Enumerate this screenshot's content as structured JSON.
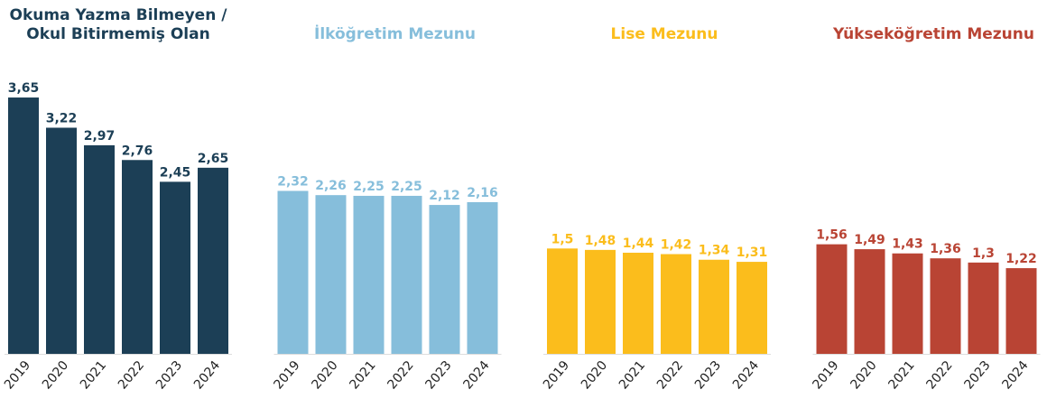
{
  "chart_data": [
    {
      "type": "bar",
      "title": "Okuma Yazma Bilmeyen / Okul Bitirmemiş Olan",
      "color": "#1c3f56",
      "categories": [
        "2019",
        "2020",
        "2021",
        "2022",
        "2023",
        "2024"
      ],
      "values": [
        3.65,
        3.22,
        2.97,
        2.76,
        2.45,
        2.65
      ],
      "value_labels": [
        "3,65",
        "3,22",
        "2,97",
        "2,76",
        "2,45",
        "2,65"
      ]
    },
    {
      "type": "bar",
      "title": "İlköğretim Mezunu",
      "color": "#86bedb",
      "categories": [
        "2019",
        "2020",
        "2021",
        "2022",
        "2023",
        "2024"
      ],
      "values": [
        2.32,
        2.26,
        2.25,
        2.25,
        2.12,
        2.16
      ],
      "value_labels": [
        "2,32",
        "2,26",
        "2,25",
        "2,25",
        "2,12",
        "2,16"
      ]
    },
    {
      "type": "bar",
      "title": "Lise Mezunu",
      "color": "#fbbd1c",
      "categories": [
        "2019",
        "2020",
        "2021",
        "2022",
        "2023",
        "2024"
      ],
      "values": [
        1.5,
        1.48,
        1.44,
        1.42,
        1.34,
        1.31
      ],
      "value_labels": [
        "1,5",
        "1,48",
        "1,44",
        "1,42",
        "1,34",
        "1,31"
      ]
    },
    {
      "type": "bar",
      "title": "Yükseköğretim Mezunu",
      "color": "#b94434",
      "categories": [
        "2019",
        "2020",
        "2021",
        "2022",
        "2023",
        "2024"
      ],
      "values": [
        1.56,
        1.49,
        1.43,
        1.36,
        1.3,
        1.22
      ],
      "value_labels": [
        "1,56",
        "1,49",
        "1,43",
        "1,36",
        "1,3",
        "1,22"
      ]
    }
  ]
}
